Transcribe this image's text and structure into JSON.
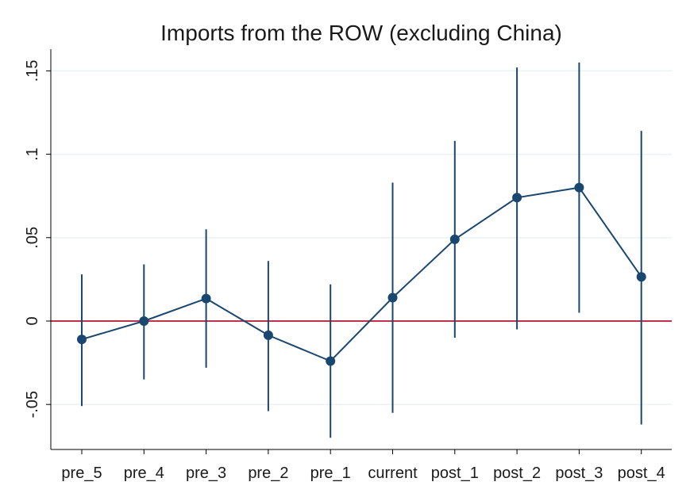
{
  "chart_data": {
    "type": "scatter",
    "title": "Imports from the ROW (excluding China)",
    "xlabel": "",
    "ylabel": "",
    "categories": [
      "pre_5",
      "pre_4",
      "pre_3",
      "pre_2",
      "pre_1",
      "current",
      "post_1",
      "post_2",
      "post_3",
      "post_4"
    ],
    "y_ticks": [
      {
        "value": -0.05,
        "label": "-.05"
      },
      {
        "value": 0,
        "label": "0"
      },
      {
        "value": 0.05,
        "label": ".05"
      },
      {
        "value": 0.1,
        "label": ".1"
      },
      {
        "value": 0.15,
        "label": ".15"
      }
    ],
    "ylim": [
      -0.077,
      0.163
    ],
    "grid": true,
    "reference_line": 0,
    "series": [
      {
        "estimates": [
          -0.011,
          0.0,
          0.0135,
          -0.0085,
          -0.024,
          0.014,
          0.049,
          0.074,
          0.08,
          0.0265
        ],
        "ci_lower": [
          -0.051,
          -0.035,
          -0.028,
          -0.054,
          -0.07,
          -0.055,
          -0.01,
          -0.005,
          0.005,
          -0.062
        ],
        "ci_upper": [
          0.028,
          0.034,
          0.055,
          0.036,
          0.022,
          0.083,
          0.108,
          0.152,
          0.155,
          0.114
        ]
      }
    ],
    "colors": {
      "series": "#1a476f",
      "reference": "#c0304a",
      "grid": "#eaf2f3",
      "axis": "#000000",
      "background": "#ffffff"
    }
  }
}
